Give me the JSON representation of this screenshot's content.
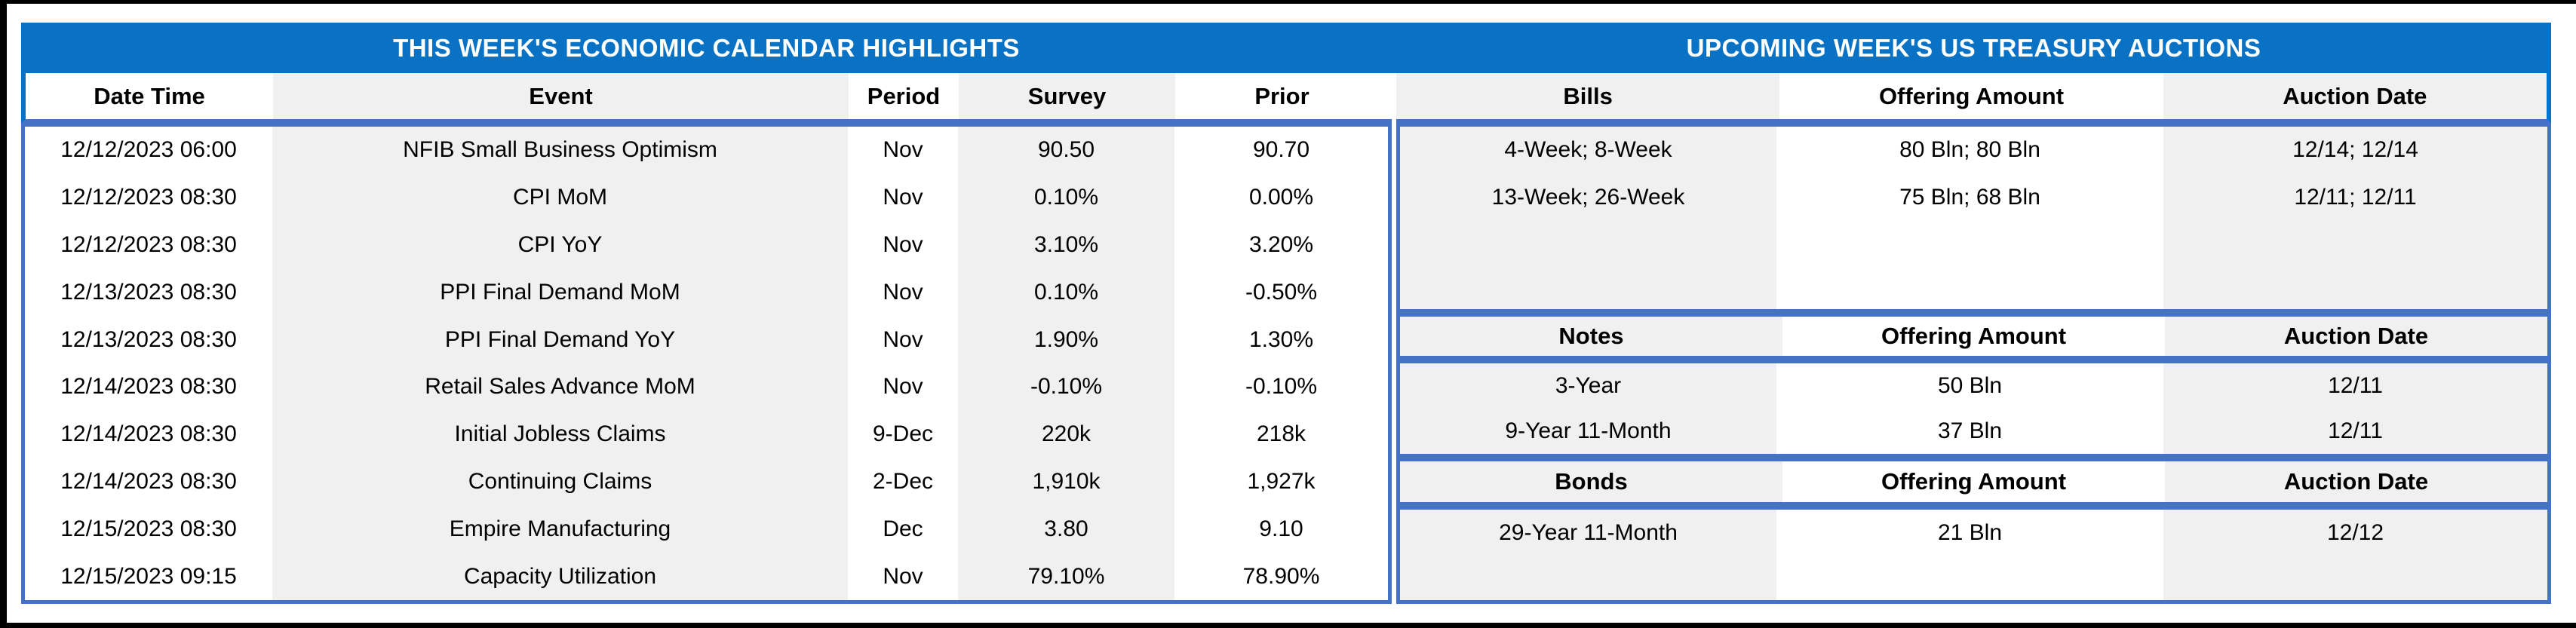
{
  "colors": {
    "band_blue": "#0972C5",
    "border_blue": "#4472C4",
    "stripe_gray": "#F0F0F0",
    "frame_black": "#000000",
    "title_text": "#FFFFFF"
  },
  "left_table": {
    "title": "THIS WEEK'S ECONOMIC CALENDAR HIGHLIGHTS",
    "columns": [
      "Date Time",
      "Event",
      "Period",
      "Survey",
      "Prior"
    ],
    "rows": [
      {
        "date_time": "12/12/2023 06:00",
        "event": "NFIB Small Business Optimism",
        "period": "Nov",
        "survey": "90.50",
        "prior": "90.70"
      },
      {
        "date_time": "12/12/2023 08:30",
        "event": "CPI MoM",
        "period": "Nov",
        "survey": "0.10%",
        "prior": "0.00%"
      },
      {
        "date_time": "12/12/2023 08:30",
        "event": "CPI YoY",
        "period": "Nov",
        "survey": "3.10%",
        "prior": "3.20%"
      },
      {
        "date_time": "12/13/2023 08:30",
        "event": "PPI Final Demand MoM",
        "period": "Nov",
        "survey": "0.10%",
        "prior": "-0.50%"
      },
      {
        "date_time": "12/13/2023 08:30",
        "event": "PPI Final Demand YoY",
        "period": "Nov",
        "survey": "1.90%",
        "prior": "1.30%"
      },
      {
        "date_time": "12/14/2023 08:30",
        "event": "Retail Sales Advance MoM",
        "period": "Nov",
        "survey": "-0.10%",
        "prior": "-0.10%"
      },
      {
        "date_time": "12/14/2023 08:30",
        "event": "Initial Jobless Claims",
        "period": "9-Dec",
        "survey": "220k",
        "prior": "218k"
      },
      {
        "date_time": "12/14/2023 08:30",
        "event": "Continuing Claims",
        "period": "2-Dec",
        "survey": "1,910k",
        "prior": "1,927k"
      },
      {
        "date_time": "12/15/2023 08:30",
        "event": "Empire Manufacturing",
        "period": "Dec",
        "survey": "3.80",
        "prior": "9.10"
      },
      {
        "date_time": "12/15/2023 09:15",
        "event": "Capacity Utilization",
        "period": "Nov",
        "survey": "79.10%",
        "prior": "78.90%"
      }
    ]
  },
  "right_table": {
    "title": "UPCOMING WEEK'S US TREASURY AUCTIONS",
    "bills": {
      "header": [
        "Bills",
        "Offering Amount",
        "Auction Date"
      ],
      "rows": [
        [
          "4-Week; 8-Week",
          "80 Bln; 80 Bln",
          "12/14; 12/14"
        ],
        [
          "13-Week; 26-Week",
          "75 Bln; 68 Bln",
          "12/11; 12/11"
        ]
      ]
    },
    "notes": {
      "header": [
        "Notes",
        "Offering Amount",
        "Auction Date"
      ],
      "rows": [
        [
          "3-Year",
          "50 Bln",
          "12/11"
        ],
        [
          "9-Year 11-Month",
          "37 Bln",
          "12/11"
        ]
      ]
    },
    "bonds": {
      "header": [
        "Bonds",
        "Offering Amount",
        "Auction Date"
      ],
      "rows": [
        [
          "29-Year 11-Month",
          "21 Bln",
          "12/12"
        ]
      ]
    }
  }
}
